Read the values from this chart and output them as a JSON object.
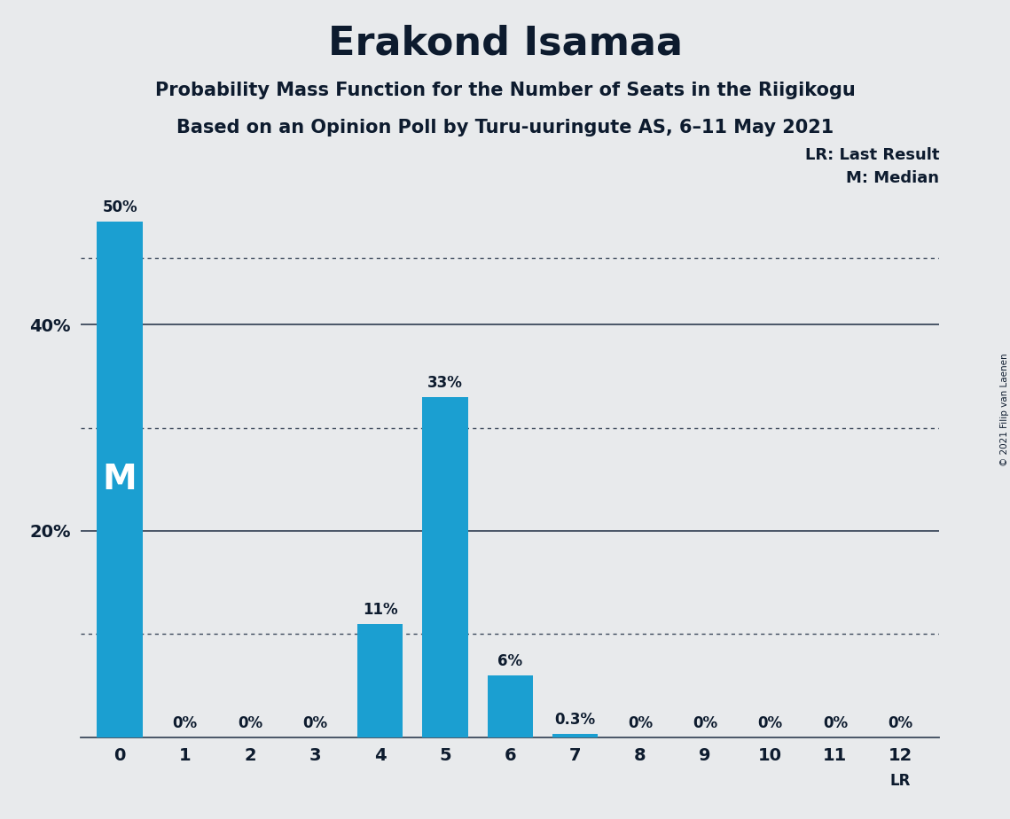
{
  "title": "Erakond Isamaa",
  "subtitle1": "Probability Mass Function for the Number of Seats in the Riigikogu",
  "subtitle2": "Based on an Opinion Poll by Turu-uuringute AS, 6–11 May 2021",
  "copyright": "© 2021 Filip van Laenen",
  "seats": [
    0,
    1,
    2,
    3,
    4,
    5,
    6,
    7,
    8,
    9,
    10,
    11,
    12
  ],
  "values": [
    50,
    0,
    0,
    0,
    11,
    33,
    6,
    0.3,
    0,
    0,
    0,
    0,
    0
  ],
  "bar_color": "#1b9fd1",
  "background_color": "#e8eaec",
  "text_color": "#0d1b2e",
  "ylim_max": 54,
  "solid_gridlines": [
    20,
    40
  ],
  "dotted_gridlines": [
    10,
    30,
    46.5
  ],
  "median_seat": 0,
  "median_line_y": 46.5,
  "lr_seat": 12,
  "legend_lr_text": "LR: Last Result",
  "legend_m_text": "M: Median",
  "lr_label": "LR",
  "m_label": "M"
}
